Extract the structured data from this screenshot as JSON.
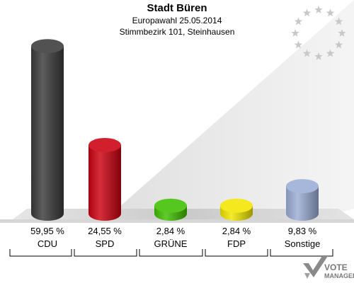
{
  "header": {
    "title": "Stadt Büren",
    "subtitle": "Europawahl 25.05.2014",
    "district": "Stimmbezirk 101, Steinhausen"
  },
  "logo": {
    "line1": "VOTE",
    "line2": "MANAGER",
    "icon": "checkmark-icon"
  },
  "eu_flag": {
    "icon": "eu-stars-icon",
    "star_color": "#c8c8c8"
  },
  "chart_data": {
    "type": "bar",
    "categories": [
      "CDU",
      "SPD",
      "GRÜNE",
      "FDP",
      "Sonstige"
    ],
    "values": [
      59.95,
      24.55,
      2.84,
      2.84,
      9.83
    ],
    "value_labels": [
      "59,95 %",
      "24,55 %",
      "2,84 %",
      "2,84 %",
      "9,83 %"
    ],
    "colors": [
      "#3a3a3a",
      "#cc0010",
      "#3fbf00",
      "#f2e600",
      "#9badd6"
    ],
    "title": "Stadt Büren",
    "subtitle": "Europawahl 25.05.2014",
    "ylim": [
      0,
      60
    ],
    "grid": false,
    "legend": "none"
  }
}
